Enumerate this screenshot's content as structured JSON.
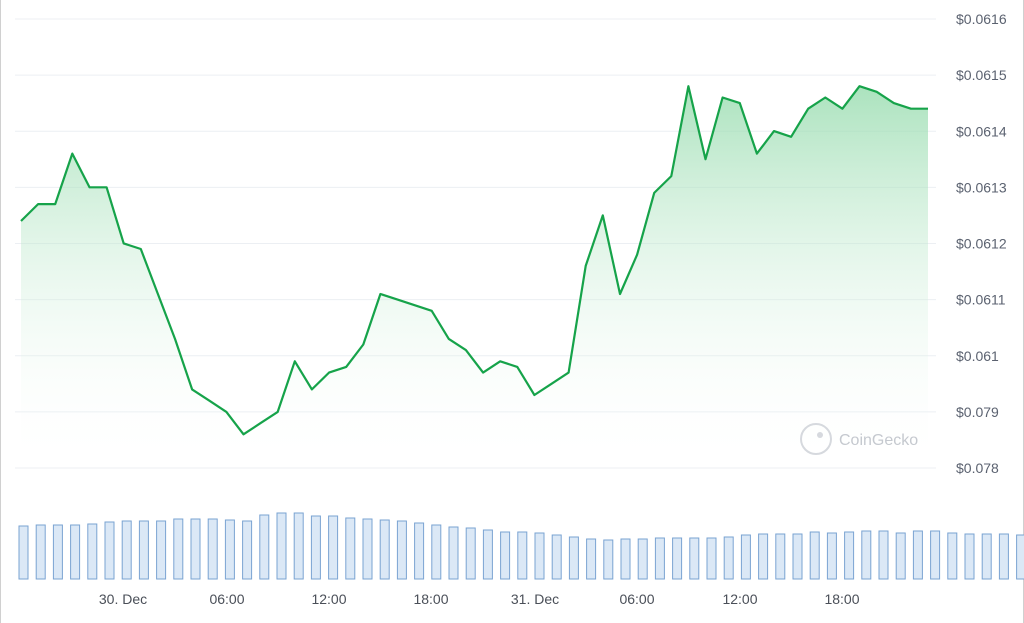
{
  "chart_data": {
    "type": "area",
    "title": "",
    "watermark": "CoinGecko",
    "y_tick_labels": [
      "$0.0616",
      "$0.0615",
      "$0.0614",
      "$0.0613",
      "$0.0612",
      "$0.0611",
      "$0.061",
      "$0.079",
      "$0.078"
    ],
    "x_tick_labels": [
      "30. Dec",
      "06:00",
      "12:00",
      "18:00",
      "31. Dec",
      "06:00",
      "12:00",
      "18:00"
    ],
    "grid": true,
    "line_color": "#16a34a",
    "fill_color": "#8fd9a8",
    "series": [
      {
        "values": [
          0.06124,
          0.06127,
          0.06127,
          0.06136,
          0.0613,
          0.0613,
          0.0612,
          0.06119,
          0.06111,
          0.06103,
          0.06094,
          0.06092,
          0.0609,
          0.06086,
          0.06088,
          0.0609,
          0.06099,
          0.06094,
          0.06097,
          0.06098,
          0.06102,
          0.06111,
          0.0611,
          0.06109,
          0.06108,
          0.06103,
          0.06101,
          0.06097,
          0.06099,
          0.06098,
          0.06093,
          0.06095,
          0.06097,
          0.06116,
          0.06125,
          0.06111,
          0.06118,
          0.06129,
          0.06132,
          0.06148,
          0.06135,
          0.06146,
          0.06145,
          0.06136,
          0.0614,
          0.06139,
          0.06144,
          0.06146,
          0.06144,
          0.06148,
          0.06147,
          0.06145,
          0.06144,
          0.06144
        ]
      }
    ],
    "volume": {
      "values": [
        53,
        54,
        54,
        54,
        55,
        57,
        58,
        58,
        58,
        60,
        60,
        60,
        59,
        58,
        64,
        66,
        66,
        63,
        63,
        61,
        60,
        59,
        58,
        56,
        54,
        52,
        51,
        49,
        47,
        47,
        46,
        44,
        42,
        40,
        39,
        40,
        40,
        41,
        41,
        41,
        41,
        42,
        44,
        45,
        45,
        45,
        47,
        46,
        47,
        48,
        48,
        46,
        48,
        48,
        46,
        45,
        45,
        45,
        44,
        44
      ]
    }
  }
}
